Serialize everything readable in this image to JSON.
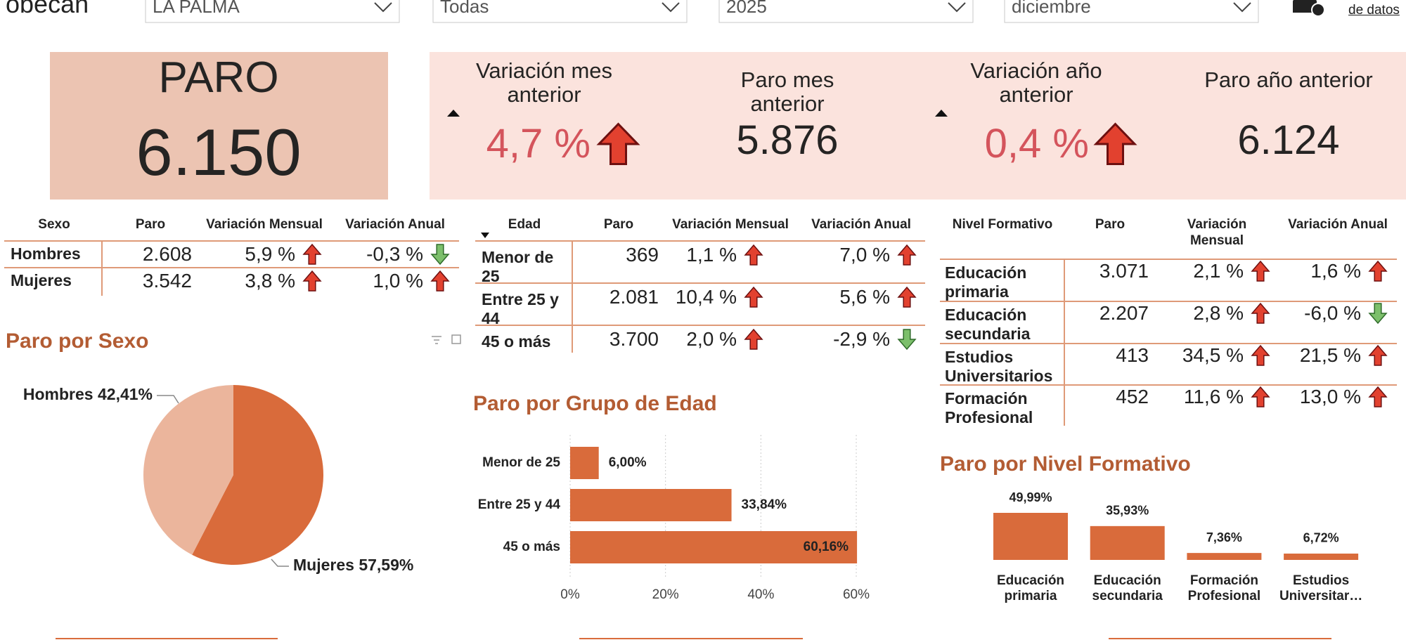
{
  "header": {
    "logo": "obecan",
    "filters": [
      "LA PALMA",
      "Todas",
      "2025",
      "diciembre"
    ],
    "download": "de datos"
  },
  "kpis": {
    "paro": {
      "label": "PARO",
      "value": "6.150"
    },
    "cards": [
      {
        "label": "Variación mes anterior",
        "value": "4,7 %"
      },
      {
        "label": "Paro mes anterior",
        "value": "5.876"
      },
      {
        "label": "Variación año anterior",
        "value": "0,4 %"
      },
      {
        "label": "Paro año anterior",
        "value": "6.124"
      }
    ]
  },
  "tables": [
    {
      "headers": [
        "Sexo",
        "Paro",
        "Variación Mensual",
        "Variación Anual"
      ],
      "rows": [
        [
          "Hombres",
          "2.608",
          "5,9 %",
          "-0,3 %"
        ],
        [
          "Mujeres",
          "3.542",
          "3,8 %",
          "1,0 %"
        ]
      ]
    },
    {
      "headers": [
        "Edad",
        "Paro",
        "Variación Mensual",
        "Variación Anual"
      ],
      "rows": [
        [
          "Menor de 25",
          "369",
          "1,1 %",
          "7,0 %"
        ],
        [
          "Entre 25 y 44",
          "2.081",
          "10,4 %",
          "5,6 %"
        ],
        [
          "45 o más",
          "3.700",
          "2,0 %",
          "-2,9 %"
        ]
      ]
    },
    {
      "headers": [
        "Nivel Formativo",
        "Paro",
        "Variación Mensual",
        "Variación Anual"
      ],
      "rows": [
        [
          "Educación primaria",
          "3.071",
          "2,1 %",
          "1,6 %"
        ],
        [
          "Educación secundaria",
          "2.207",
          "2,8 %",
          "-6,0 %"
        ],
        [
          "Estudios Universitarios",
          "413",
          "34,5 %",
          "21,5 %"
        ],
        [
          "Formación Profesional",
          "452",
          "11,6 %",
          "13,0 %"
        ]
      ]
    }
  ],
  "chart_data": [
    {
      "type": "pie",
      "title": "Paro por Sexo",
      "categories": [
        "Hombres",
        "Mujeres"
      ],
      "values": [
        42.41,
        57.59
      ],
      "value_labels": [
        "42,41%",
        "57,59%"
      ],
      "colors": [
        "#ebb59c",
        "#d96b3b"
      ]
    },
    {
      "type": "bar",
      "orientation": "horizontal",
      "title": "Paro por Grupo de Edad",
      "categories": [
        "Menor de 25",
        "Entre 25 y 44",
        "45 o más"
      ],
      "values": [
        6.0,
        33.84,
        60.16
      ],
      "value_labels": [
        "6,00%",
        "33,84%",
        "60,16%"
      ],
      "color": "#d96b3b",
      "xlim": [
        0,
        60
      ],
      "xticks": [
        {
          "value": 0,
          "label": "0%"
        },
        {
          "value": 20,
          "label": "20%"
        },
        {
          "value": 40,
          "label": "40%"
        },
        {
          "value": 60,
          "label": "60%"
        }
      ],
      "grid": true
    },
    {
      "type": "bar",
      "orientation": "vertical",
      "title": "Paro por Nivel Formativo",
      "categories": [
        "Educación primaria",
        "Educación secundaria",
        "Formación Profesional",
        "Estudios Universitar…"
      ],
      "values": [
        49.99,
        35.93,
        7.36,
        6.72
      ],
      "value_labels": [
        "49,99%",
        "35,93%",
        "7,36%",
        "6,72%"
      ],
      "color": "#d96b3b"
    }
  ]
}
